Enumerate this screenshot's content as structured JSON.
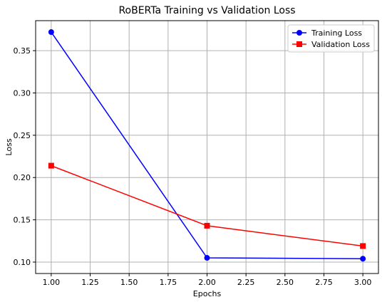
{
  "chart_data": {
    "type": "line",
    "title": "RoBERTa Training vs Validation Loss",
    "xlabel": "Epochs",
    "ylabel": "Loss",
    "x": [
      1.0,
      2.0,
      3.0
    ],
    "xlim": [
      0.9,
      3.1
    ],
    "ylim": [
      0.0865,
      0.3855
    ],
    "xticks": [
      1.0,
      1.25,
      1.5,
      1.75,
      2.0,
      2.25,
      2.5,
      2.75,
      3.0
    ],
    "xtick_labels": [
      "1.00",
      "1.25",
      "1.50",
      "1.75",
      "2.00",
      "2.25",
      "2.50",
      "2.75",
      "3.00"
    ],
    "yticks": [
      0.1,
      0.15,
      0.2,
      0.25,
      0.3,
      0.35
    ],
    "ytick_labels": [
      "0.10",
      "0.15",
      "0.20",
      "0.25",
      "0.30",
      "0.35"
    ],
    "grid": true,
    "legend_position": "upper-right",
    "series": [
      {
        "name": "Training Loss",
        "values": [
          0.372,
          0.105,
          0.104
        ],
        "color": "#0000ff",
        "marker": "circle"
      },
      {
        "name": "Validation Loss",
        "values": [
          0.214,
          0.143,
          0.119
        ],
        "color": "#ff0000",
        "marker": "square"
      }
    ]
  }
}
